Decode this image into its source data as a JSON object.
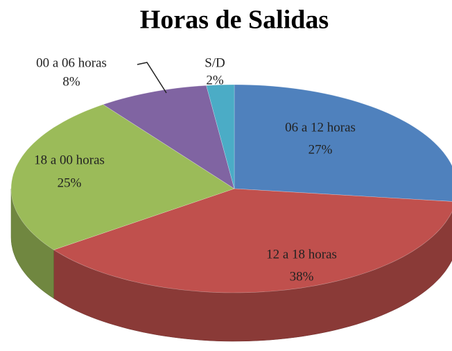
{
  "chart_data": {
    "type": "pie",
    "title": "Horas de Salidas",
    "categories": [
      "06 a 12  horas",
      "12 a 18 horas",
      "18 a 00 horas",
      "00 a 06 horas",
      "S/D"
    ],
    "values": [
      27,
      38,
      25,
      8,
      2
    ],
    "value_labels": [
      "27%",
      "38%",
      "25%",
      "8%",
      "2%"
    ],
    "colors": [
      "#4f81bd",
      "#c0504d",
      "#9bbb59",
      "#8064a2",
      "#4bacc6"
    ]
  }
}
